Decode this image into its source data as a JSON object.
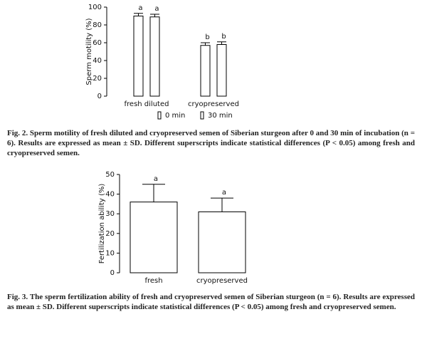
{
  "chart_data": [
    {
      "type": "bar",
      "y_label": "Sperm motility (%)",
      "categories": [
        "fresh diluted",
        "cryopreserved"
      ],
      "series": [
        {
          "name": "0 min",
          "color": "#ffffff",
          "values": [
            90,
            57
          ],
          "errors": [
            3,
            3
          ],
          "letters": [
            "a",
            "b"
          ]
        },
        {
          "name": "30 min",
          "color": "#ffffff",
          "values": [
            89,
            58
          ],
          "errors": [
            3,
            3
          ],
          "letters": [
            "a",
            "b"
          ]
        }
      ],
      "ylim": [
        0,
        100
      ],
      "yticks": [
        0,
        20,
        40,
        60,
        80,
        100
      ],
      "legend": "bottom",
      "caption": "Fig. 2. Sperm motility of fresh diluted and cryopreserved semen of Siberian sturgeon after 0 and 30 min of incubation (n = 6). Results are expressed as mean ± SD. Different superscripts indicate statistical differences (P < 0.05) among fresh and cryopreserved semen."
    },
    {
      "type": "bar",
      "y_label": "Fertilization ability (%)",
      "categories": [
        "fresh",
        "cryopreserved"
      ],
      "series": [
        {
          "color": "#ffffff",
          "values": [
            36,
            31
          ],
          "errors": [
            9,
            7
          ],
          "letters": [
            "a",
            "a"
          ]
        }
      ],
      "ylim": [
        0,
        50
      ],
      "yticks": [
        0,
        10,
        20,
        30,
        40,
        50
      ],
      "caption": "Fig. 3. The sperm fertilization ability of fresh and cryopreserved semen of Siberian sturgeon (n = 6). Results are expressed as mean ± SD. Different superscripts indicate statistical differences (P < 0.05) among fresh and cryopreserved semen."
    }
  ]
}
